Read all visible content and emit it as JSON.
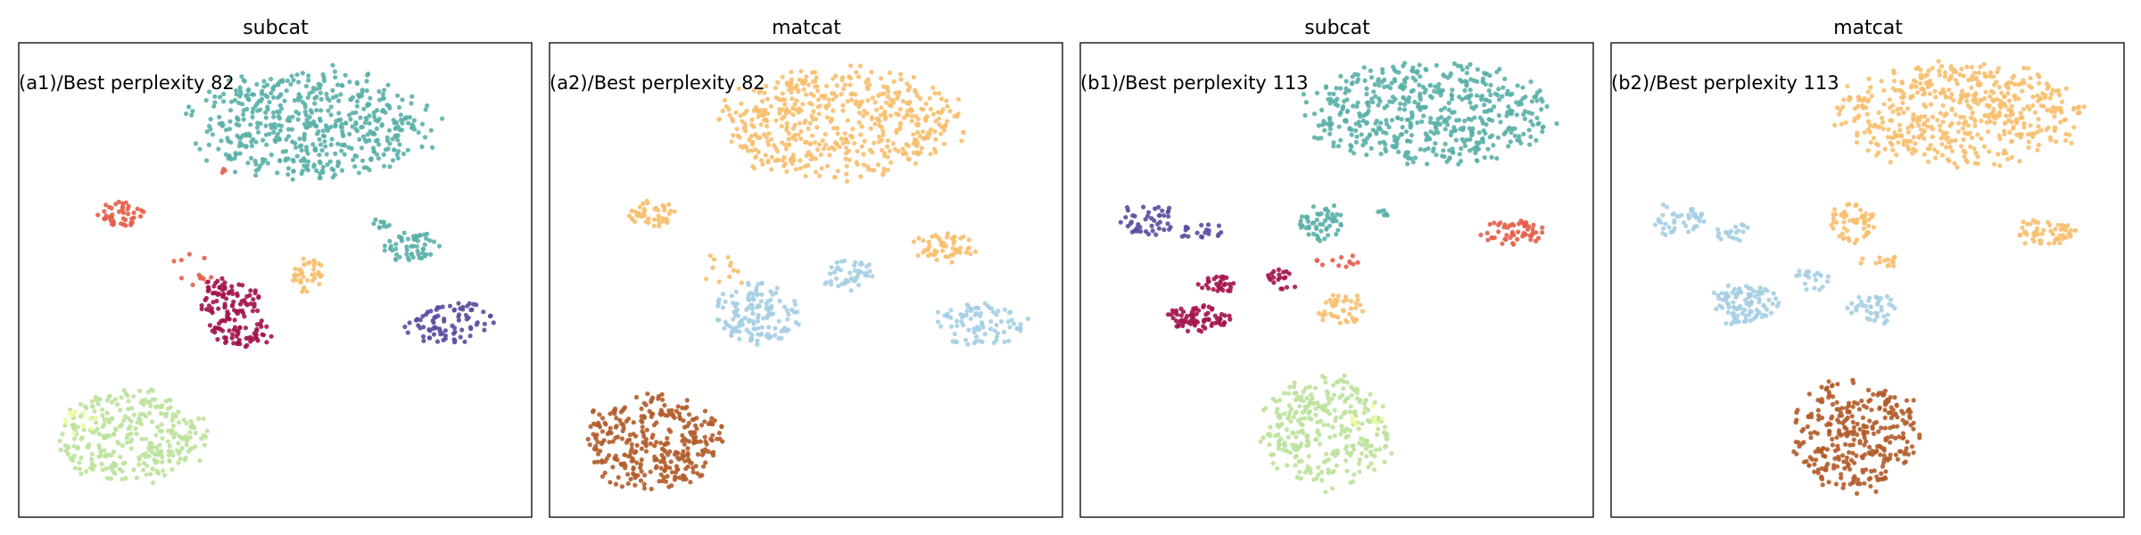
{
  "chart_data": [
    {
      "type": "scatter",
      "title": "subcat",
      "panel_label": "(a1)/Best perplexity 82",
      "xlabel": "",
      "ylabel": "",
      "grid": false,
      "axes_ticks": false,
      "clusters": [
        {
          "color": "#5ab0a8",
          "cx": 0.57,
          "cy": 0.17,
          "rx": 0.26,
          "ry": 0.13,
          "n": 520
        },
        {
          "color": "#5ab0a8",
          "cx": 0.77,
          "cy": 0.43,
          "rx": 0.07,
          "ry": 0.035,
          "n": 55
        },
        {
          "color": "#5ab0a8",
          "cx": 0.71,
          "cy": 0.38,
          "rx": 0.02,
          "ry": 0.012,
          "n": 10
        },
        {
          "color": "#e45f4a",
          "cx": 0.2,
          "cy": 0.36,
          "rx": 0.05,
          "ry": 0.03,
          "n": 45
        },
        {
          "color": "#e45f4a",
          "cx": 0.34,
          "cy": 0.48,
          "rx": 0.05,
          "ry": 0.04,
          "n": 12
        },
        {
          "color": "#e45f4a",
          "cx": 0.4,
          "cy": 0.27,
          "rx": 0.008,
          "ry": 0.008,
          "n": 3
        },
        {
          "color": "#a3144e",
          "cx": 0.41,
          "cy": 0.54,
          "rx": 0.07,
          "ry": 0.05,
          "n": 85
        },
        {
          "color": "#a3144e",
          "cx": 0.43,
          "cy": 0.61,
          "rx": 0.07,
          "ry": 0.035,
          "n": 60
        },
        {
          "color": "#f7bf6e",
          "cx": 0.56,
          "cy": 0.49,
          "rx": 0.05,
          "ry": 0.04,
          "n": 40
        },
        {
          "color": "#5b4c9e",
          "cx": 0.84,
          "cy": 0.59,
          "rx": 0.1,
          "ry": 0.05,
          "n": 85
        },
        {
          "color": "#bde29c",
          "cx": 0.22,
          "cy": 0.83,
          "rx": 0.16,
          "ry": 0.11,
          "n": 300
        },
        {
          "color": "#f0fa9f",
          "cx": 0.12,
          "cy": 0.8,
          "rx": 0.04,
          "ry": 0.03,
          "n": 12
        }
      ]
    },
    {
      "type": "scatter",
      "title": "matcat",
      "panel_label": "(a2)/Best perplexity 82",
      "xlabel": "",
      "ylabel": "",
      "grid": false,
      "axes_ticks": false,
      "clusters": [
        {
          "color": "#f7bf6e",
          "cx": 0.57,
          "cy": 0.17,
          "rx": 0.26,
          "ry": 0.13,
          "n": 520
        },
        {
          "color": "#f7bf6e",
          "cx": 0.77,
          "cy": 0.43,
          "rx": 0.07,
          "ry": 0.035,
          "n": 55
        },
        {
          "color": "#f7bf6e",
          "cx": 0.2,
          "cy": 0.36,
          "rx": 0.05,
          "ry": 0.03,
          "n": 45
        },
        {
          "color": "#f7bf6e",
          "cx": 0.34,
          "cy": 0.48,
          "rx": 0.05,
          "ry": 0.04,
          "n": 12
        },
        {
          "color": "#a6cee3",
          "cx": 0.41,
          "cy": 0.57,
          "rx": 0.09,
          "ry": 0.07,
          "n": 140
        },
        {
          "color": "#a6cee3",
          "cx": 0.58,
          "cy": 0.49,
          "rx": 0.06,
          "ry": 0.04,
          "n": 45
        },
        {
          "color": "#a6cee3",
          "cx": 0.84,
          "cy": 0.59,
          "rx": 0.1,
          "ry": 0.05,
          "n": 85
        },
        {
          "color": "#b35c2a",
          "cx": 0.2,
          "cy": 0.84,
          "rx": 0.15,
          "ry": 0.11,
          "n": 320
        }
      ]
    },
    {
      "type": "scatter",
      "title": "subcat",
      "panel_label": "(b1)/Best perplexity 113",
      "xlabel": "",
      "ylabel": "",
      "grid": false,
      "axes_ticks": false,
      "clusters": [
        {
          "color": "#5ab0a8",
          "cx": 0.68,
          "cy": 0.15,
          "rx": 0.27,
          "ry": 0.12,
          "n": 520
        },
        {
          "color": "#5ab0a8",
          "cx": 0.47,
          "cy": 0.38,
          "rx": 0.05,
          "ry": 0.05,
          "n": 55
        },
        {
          "color": "#5ab0a8",
          "cx": 0.59,
          "cy": 0.36,
          "rx": 0.02,
          "ry": 0.01,
          "n": 6
        },
        {
          "color": "#5b4c9e",
          "cx": 0.13,
          "cy": 0.37,
          "rx": 0.06,
          "ry": 0.04,
          "n": 45
        },
        {
          "color": "#5b4c9e",
          "cx": 0.24,
          "cy": 0.4,
          "rx": 0.05,
          "ry": 0.02,
          "n": 20
        },
        {
          "color": "#e45f4a",
          "cx": 0.84,
          "cy": 0.4,
          "rx": 0.07,
          "ry": 0.03,
          "n": 55
        },
        {
          "color": "#e45f4a",
          "cx": 0.5,
          "cy": 0.46,
          "rx": 0.05,
          "ry": 0.015,
          "n": 12
        },
        {
          "color": "#a3144e",
          "cx": 0.26,
          "cy": 0.51,
          "rx": 0.05,
          "ry": 0.02,
          "n": 30
        },
        {
          "color": "#a3144e",
          "cx": 0.39,
          "cy": 0.5,
          "rx": 0.04,
          "ry": 0.025,
          "n": 20
        },
        {
          "color": "#a3144e",
          "cx": 0.23,
          "cy": 0.58,
          "rx": 0.07,
          "ry": 0.03,
          "n": 75
        },
        {
          "color": "#f7bf6e",
          "cx": 0.51,
          "cy": 0.56,
          "rx": 0.05,
          "ry": 0.04,
          "n": 40
        },
        {
          "color": "#bde29c",
          "cx": 0.48,
          "cy": 0.82,
          "rx": 0.14,
          "ry": 0.13,
          "n": 300
        },
        {
          "color": "#f0fa9f",
          "cx": 0.56,
          "cy": 0.79,
          "rx": 0.04,
          "ry": 0.03,
          "n": 10
        }
      ]
    },
    {
      "type": "scatter",
      "title": "matcat",
      "panel_label": "(b2)/Best perplexity 113",
      "xlabel": "",
      "ylabel": "",
      "grid": false,
      "axes_ticks": false,
      "clusters": [
        {
          "color": "#f7bf6e",
          "cx": 0.68,
          "cy": 0.15,
          "rx": 0.27,
          "ry": 0.12,
          "n": 520
        },
        {
          "color": "#f7bf6e",
          "cx": 0.47,
          "cy": 0.38,
          "rx": 0.05,
          "ry": 0.05,
          "n": 55
        },
        {
          "color": "#f7bf6e",
          "cx": 0.84,
          "cy": 0.4,
          "rx": 0.07,
          "ry": 0.03,
          "n": 55
        },
        {
          "color": "#f7bf6e",
          "cx": 0.53,
          "cy": 0.46,
          "rx": 0.06,
          "ry": 0.015,
          "n": 14
        },
        {
          "color": "#a6cee3",
          "cx": 0.13,
          "cy": 0.37,
          "rx": 0.06,
          "ry": 0.04,
          "n": 45
        },
        {
          "color": "#a6cee3",
          "cx": 0.24,
          "cy": 0.4,
          "rx": 0.05,
          "ry": 0.02,
          "n": 20
        },
        {
          "color": "#a6cee3",
          "cx": 0.26,
          "cy": 0.55,
          "rx": 0.07,
          "ry": 0.05,
          "n": 100
        },
        {
          "color": "#a6cee3",
          "cx": 0.39,
          "cy": 0.5,
          "rx": 0.04,
          "ry": 0.025,
          "n": 20
        },
        {
          "color": "#a6cee3",
          "cx": 0.51,
          "cy": 0.56,
          "rx": 0.05,
          "ry": 0.04,
          "n": 40
        },
        {
          "color": "#b35c2a",
          "cx": 0.48,
          "cy": 0.83,
          "rx": 0.14,
          "ry": 0.13,
          "n": 320
        }
      ]
    }
  ]
}
